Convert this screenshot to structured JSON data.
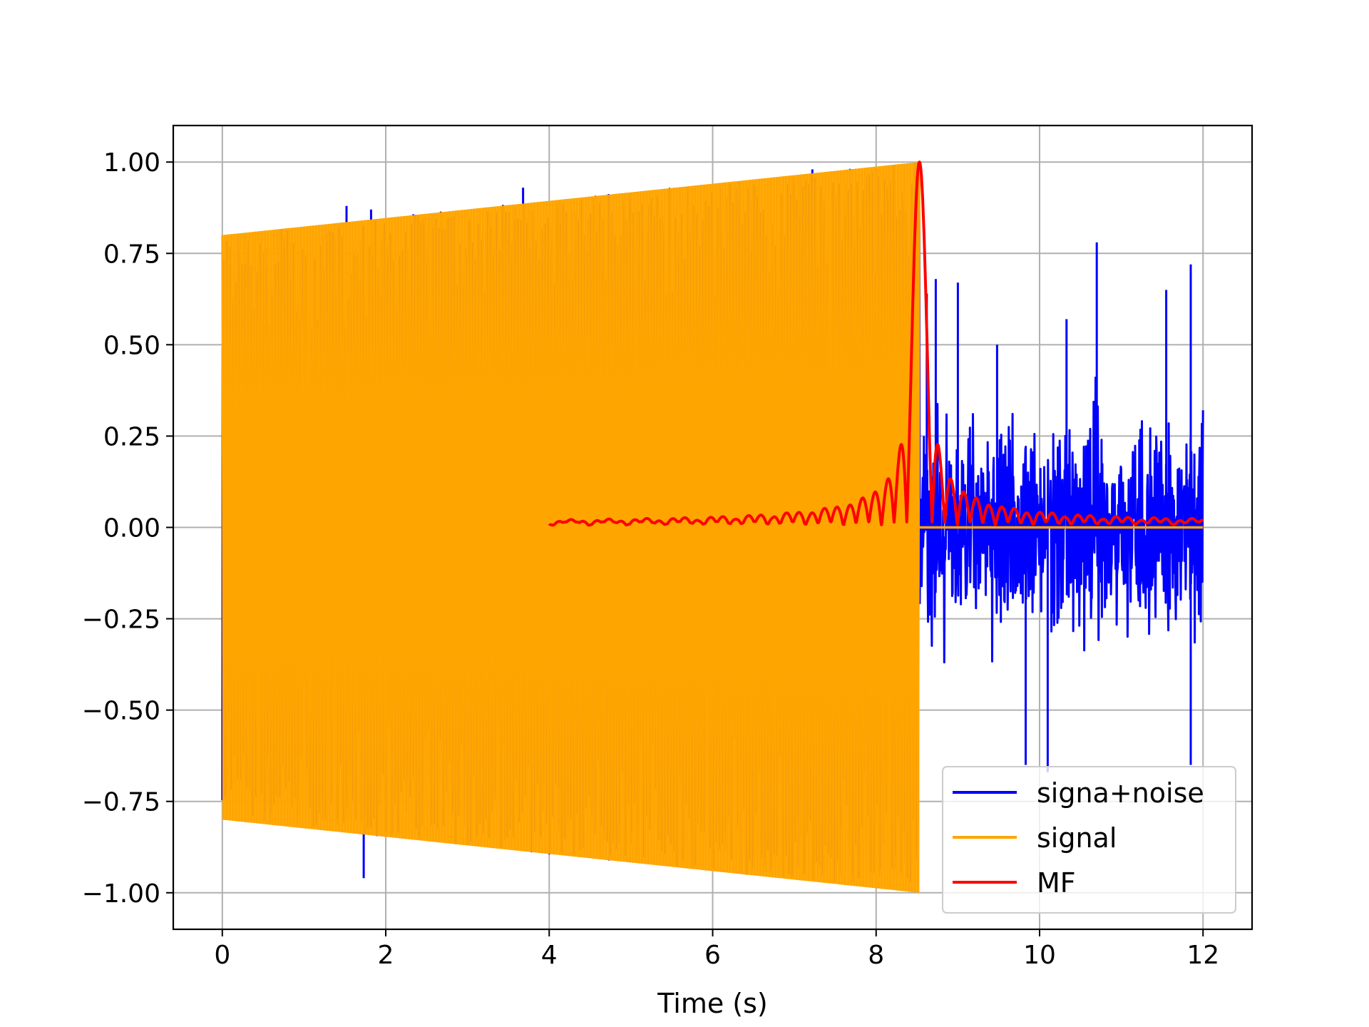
{
  "chart_data": {
    "type": "line",
    "title": "",
    "xlabel": "Time (s)",
    "ylabel": "",
    "xlim": [
      -0.6,
      12.6
    ],
    "ylim": [
      -1.1,
      1.1
    ],
    "grid": true,
    "legend_position": "lower-right",
    "x_ticks": [
      0,
      2,
      4,
      6,
      8,
      10,
      12
    ],
    "x_tick_labels": [
      "0",
      "2",
      "4",
      "6",
      "8",
      "10",
      "12"
    ],
    "y_ticks": [
      1.0,
      0.75,
      0.5,
      0.25,
      0.0,
      -0.25,
      -0.5,
      -0.75,
      -1.0
    ],
    "y_tick_labels": [
      "1.00",
      "0.75",
      "0.50",
      "0.25",
      "0.00",
      "−0.25",
      "−0.50",
      "−0.75",
      "−1.00"
    ],
    "series": [
      {
        "name": "signa+noise",
        "color": "#0000ff",
        "x_range": [
          0,
          12
        ],
        "signal_end": 8.53,
        "noise_peaks": [
          [
            1.52,
            0.88
          ],
          [
            1.82,
            0.87
          ],
          [
            3.68,
            0.93
          ],
          [
            7.22,
            0.98
          ],
          [
            1.73,
            -0.96
          ],
          [
            8.62,
            0.64
          ],
          [
            8.73,
            0.68
          ],
          [
            9.0,
            0.67
          ],
          [
            9.48,
            0.5
          ],
          [
            10.33,
            0.57
          ],
          [
            10.7,
            0.78
          ],
          [
            11.55,
            0.65
          ],
          [
            11.85,
            0.72
          ],
          [
            9.83,
            -0.65
          ],
          [
            10.1,
            -0.67
          ],
          [
            11.85,
            -0.65
          ]
        ]
      },
      {
        "name": "signal",
        "color": "#ffa500",
        "x_range": [
          0,
          8.53
        ],
        "envelope_start": 0.8,
        "envelope_end": 1.0,
        "after_value": 0.0,
        "after_range": [
          8.53,
          12
        ]
      },
      {
        "name": "MF",
        "color": "#ff0000",
        "x_range": [
          4,
          12
        ],
        "peak": [
          8.53,
          1.0
        ],
        "baseline": 0.02
      }
    ]
  }
}
